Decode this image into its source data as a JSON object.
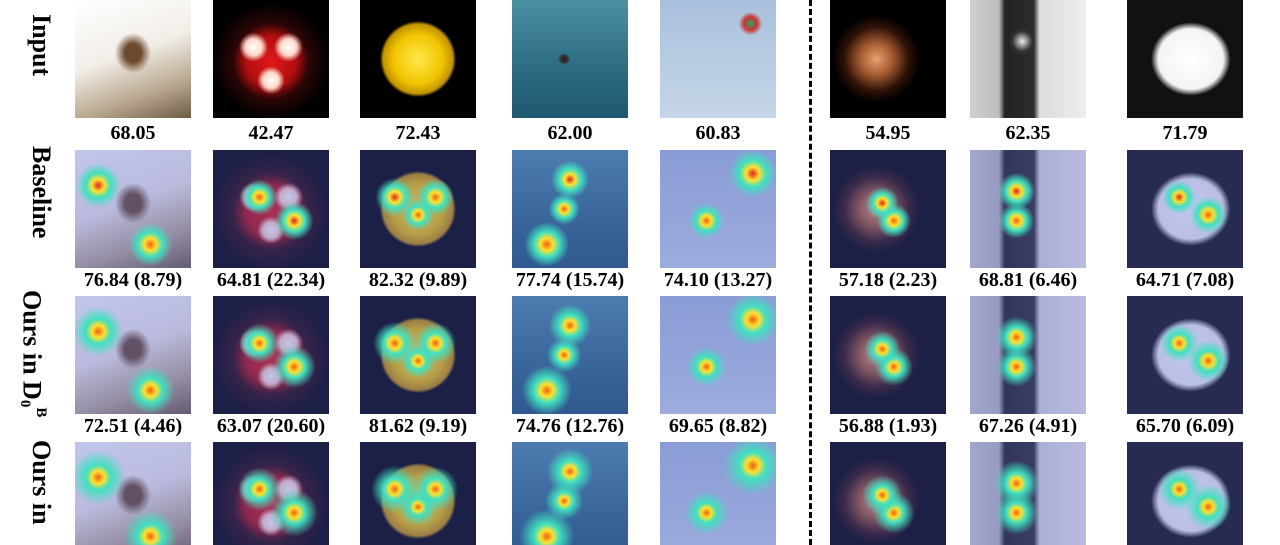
{
  "row_labels": [
    {
      "text": "Input"
    },
    {
      "text": "Baseline"
    },
    {
      "text": "Ours in D",
      "sub": "0",
      "sup": "B"
    },
    {
      "text": "Ours in"
    }
  ],
  "score_rows": [
    [
      "68.05",
      "42.47",
      "72.43",
      "62.00",
      "60.83",
      "54.95",
      "62.35",
      "71.79"
    ],
    [
      "76.84 (8.79)",
      "64.81 (22.34)",
      "82.32 (9.89)",
      "77.74 (15.74)",
      "74.10 (13.27)",
      "57.18 (2.23)",
      "68.81 (6.46)",
      "64.71 (7.08)"
    ],
    [
      "72.51 (4.46)",
      "63.07 (20.60)",
      "81.62 (9.19)",
      "74.76 (12.76)",
      "69.65 (8.82)",
      "56.88 (1.93)",
      "67.26 (4.91)",
      "65.70 (6.09)"
    ]
  ]
}
